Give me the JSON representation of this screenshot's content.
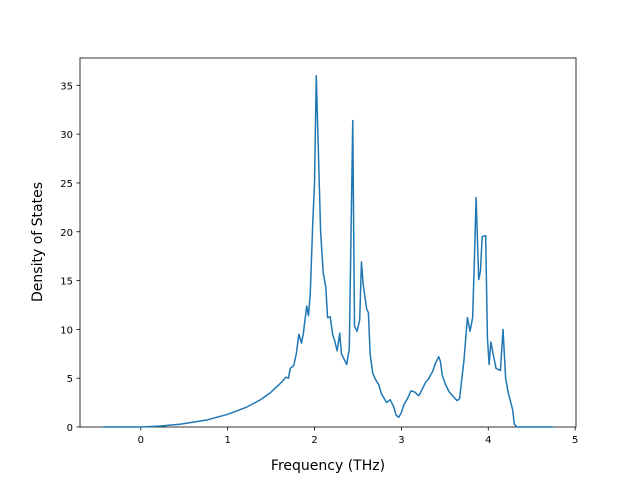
{
  "chart_data": {
    "type": "line",
    "xlabel": "Frequency (THz)",
    "ylabel": "Density of States",
    "x": [
      -0.44,
      0,
      0.23,
      0.46,
      0.75,
      1.0,
      1.21,
      1.38,
      1.49,
      1.61,
      1.67,
      1.7,
      1.72,
      1.76,
      1.79,
      1.82,
      1.85,
      1.87,
      1.91,
      1.93,
      1.95,
      1.98,
      2.0,
      2.02,
      2.07,
      2.1,
      2.13,
      2.15,
      2.18,
      2.21,
      2.23,
      2.26,
      2.29,
      2.31,
      2.37,
      2.4,
      2.44,
      2.46,
      2.49,
      2.52,
      2.54,
      2.56,
      2.6,
      2.62,
      2.64,
      2.67,
      2.7,
      2.74,
      2.77,
      2.83,
      2.87,
      2.91,
      2.94,
      2.97,
      3.0,
      3.03,
      3.07,
      3.11,
      3.15,
      3.2,
      3.23,
      3.28,
      3.31,
      3.36,
      3.39,
      3.43,
      3.45,
      3.47,
      3.51,
      3.55,
      3.61,
      3.64,
      3.67,
      3.69,
      3.72,
      3.76,
      3.79,
      3.82,
      3.84,
      3.86,
      3.89,
      3.91,
      3.93,
      3.97,
      3.99,
      4.01,
      4.03,
      4.06,
      4.09,
      4.14,
      4.17,
      4.2,
      4.23,
      4.28,
      4.3,
      4.33,
      4.75
    ],
    "series": [
      {
        "color": "#1f77b4",
        "values": [
          0,
          0,
          0.1,
          0.3,
          0.7,
          1.3,
          2.0,
          2.8,
          3.5,
          4.5,
          5.1,
          5.0,
          6.0,
          6.3,
          7.5,
          9.5,
          8.6,
          9.5,
          12.4,
          11.4,
          13.5,
          21,
          25,
          36,
          20,
          15.8,
          14.3,
          11.2,
          11.3,
          9.4,
          8.9,
          7.8,
          9.6,
          7.5,
          6.4,
          8.0,
          31.4,
          10.3,
          9.8,
          11,
          16.9,
          14.6,
          12.1,
          11.7,
          7.5,
          5.5,
          4.9,
          4.3,
          3.4,
          2.5,
          2.8,
          2.1,
          1.2,
          1.0,
          1.5,
          2.3,
          2.9,
          3.7,
          3.6,
          3.2,
          3.7,
          4.6,
          4.9,
          5.7,
          6.5,
          7.2,
          6.7,
          5.3,
          4.3,
          3.6,
          3.0,
          2.7,
          2.9,
          4.5,
          6.8,
          11.2,
          9.8,
          11.2,
          17,
          23.5,
          15.1,
          16,
          19.5,
          19.6,
          9.2,
          6.4,
          8.7,
          7.3,
          6.0,
          5.8,
          10.0,
          5.0,
          3.5,
          1.8,
          0.3,
          0,
          0
        ]
      }
    ],
    "xlim": [
      -0.7,
      5.01
    ],
    "xticks": [
      0,
      1,
      2,
      3,
      4,
      5
    ],
    "ylim": [
      0,
      37.8
    ],
    "yticks": [
      0,
      5,
      10,
      15,
      20,
      25,
      30,
      35
    ]
  }
}
